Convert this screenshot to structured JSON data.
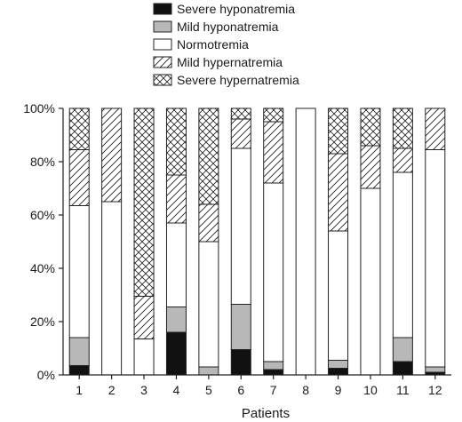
{
  "chart_data": {
    "type": "bar",
    "stacked": true,
    "title": "",
    "xlabel": "Patients",
    "ylabel": "",
    "ylim": [
      0,
      100
    ],
    "yticks": [
      "0%",
      "20%",
      "40%",
      "60%",
      "80%",
      "100%"
    ],
    "categories": [
      "1",
      "2",
      "3",
      "4",
      "5",
      "6",
      "7",
      "8",
      "9",
      "10",
      "11",
      "12"
    ],
    "legend_position": "top",
    "series": [
      {
        "name": "Severe hyponatremia",
        "fill": "#111111",
        "pattern": "solid",
        "values": [
          3.5,
          0,
          0,
          16,
          0,
          9.5,
          2,
          0,
          2.5,
          0,
          5,
          1
        ]
      },
      {
        "name": "Mild hyponatremia",
        "fill": "#b8b8b8",
        "pattern": "solid",
        "values": [
          10.5,
          0,
          0,
          9.5,
          3,
          17,
          3,
          0,
          3,
          0,
          9,
          2
        ]
      },
      {
        "name": "Normotremia",
        "fill": "#ffffff",
        "pattern": "none",
        "values": [
          49.5,
          65,
          13.5,
          31.5,
          47,
          58.5,
          67,
          100,
          48.5,
          70,
          62,
          81.5
        ]
      },
      {
        "name": "Mild hypernatremia",
        "fill": "#ffffff",
        "pattern": "diagonal",
        "values": [
          21,
          35,
          16,
          18,
          14,
          11,
          23,
          0,
          29,
          16,
          9,
          15.5
        ]
      },
      {
        "name": "Severe hypernatremia",
        "fill": "#ffffff",
        "pattern": "crosshatch",
        "values": [
          15.5,
          0,
          70.5,
          25,
          36,
          4,
          5,
          0,
          17,
          14,
          15,
          0
        ]
      }
    ]
  }
}
